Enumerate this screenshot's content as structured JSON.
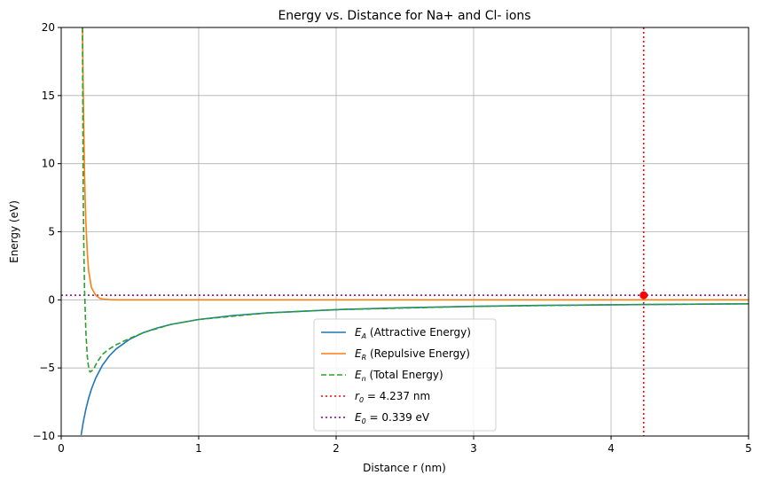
{
  "chart_data": {
    "type": "line",
    "title": "Energy vs. Distance for Na+ and Cl- ions",
    "xlabel": "Distance r (nm)",
    "ylabel": "Energy (eV)",
    "xlim": [
      0,
      5
    ],
    "ylim": [
      -10,
      20
    ],
    "xticks": [
      0,
      1,
      2,
      3,
      4,
      5
    ],
    "yticks": [
      -10,
      -5,
      0,
      5,
      10,
      15,
      20
    ],
    "grid": true,
    "legend_position": "bottom-center",
    "series": [
      {
        "legend_parts": [
          "E",
          "A",
          " (Attractive Energy)"
        ],
        "color": "#1f77b4",
        "style": "solid",
        "x": [
          0.145,
          0.16,
          0.18,
          0.2,
          0.22,
          0.25,
          0.3,
          0.35,
          0.4,
          0.5,
          0.6,
          0.7,
          0.8,
          1.0,
          1.25,
          1.5,
          2.0,
          2.5,
          3.0,
          3.5,
          4.0,
          4.5,
          5.0
        ],
        "y": [
          -9.93,
          -9.0,
          -8.0,
          -7.2,
          -6.55,
          -5.76,
          -4.8,
          -4.11,
          -3.6,
          -2.88,
          -2.4,
          -2.06,
          -1.8,
          -1.44,
          -1.15,
          -0.96,
          -0.72,
          -0.58,
          -0.48,
          -0.41,
          -0.36,
          -0.32,
          -0.29
        ]
      },
      {
        "legend_parts": [
          "E",
          "R",
          " (Repulsive Energy)"
        ],
        "color": "#ff7f0e",
        "style": "solid",
        "x": [
          0.155,
          0.16,
          0.165,
          0.17,
          0.175,
          0.18,
          0.19,
          0.2,
          0.22,
          0.25,
          0.28,
          0.3,
          0.35,
          0.4,
          1.0,
          2.0,
          3.0,
          4.0,
          5.0
        ],
        "y": [
          20.0,
          15.5,
          12.0,
          9.3,
          7.2,
          5.6,
          3.4,
          2.1,
          0.9,
          0.35,
          0.12,
          0.06,
          0.02,
          0.0,
          0.0,
          0.0,
          0.0,
          0.0,
          0.0
        ]
      },
      {
        "legend_parts": [
          "E",
          "n",
          " (Total Energy)"
        ],
        "color": "#2ca02c",
        "style": "dashed",
        "x": [
          0.155,
          0.16,
          0.165,
          0.17,
          0.18,
          0.19,
          0.2,
          0.21,
          0.225,
          0.24,
          0.26,
          0.3,
          0.35,
          0.4,
          0.5,
          0.6,
          0.8,
          1.0,
          1.5,
          2.0,
          3.0,
          4.0,
          5.0
        ],
        "y": [
          20.0,
          8.0,
          3.5,
          0.8,
          -2.5,
          -4.2,
          -5.0,
          -5.3,
          -5.2,
          -5.0,
          -4.6,
          -4.0,
          -3.6,
          -3.3,
          -2.82,
          -2.4,
          -1.8,
          -1.44,
          -0.96,
          -0.72,
          -0.48,
          -0.36,
          -0.29
        ]
      }
    ],
    "reference_lines": [
      {
        "legend_parts": [
          "r",
          "0",
          " = 4.237 nm"
        ],
        "orientation": "vertical",
        "value": 4.237,
        "color": "#ff0000",
        "style": "dotted"
      },
      {
        "legend_parts": [
          "E",
          "0",
          " = 0.339 eV"
        ],
        "orientation": "horizontal",
        "value": 0.339,
        "color": "#800080",
        "style": "dotted"
      }
    ],
    "marker_point": {
      "x": 4.237,
      "y": 0.339,
      "color": "#ff0000"
    }
  }
}
